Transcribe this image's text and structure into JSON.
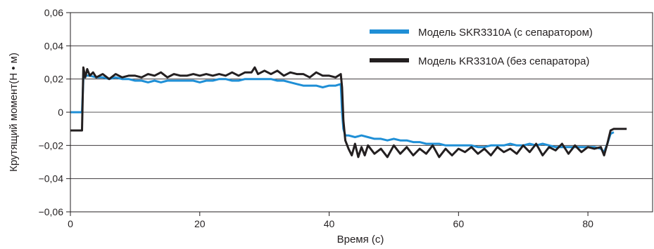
{
  "chart_data": {
    "type": "line",
    "xlabel": "Время (с)",
    "ylabel": "Крутящий момент(Н • м)",
    "xlim": [
      0,
      90
    ],
    "ylim": [
      -0.06,
      0.06
    ],
    "x_ticks": [
      "0",
      "20",
      "40",
      "60",
      "80"
    ],
    "x_tick_values": [
      0,
      20,
      40,
      60,
      80
    ],
    "y_ticks": [
      "0,06",
      "0,04",
      "0,02",
      "0",
      "−0,02",
      "−0,04",
      "−0,06"
    ],
    "y_tick_values": [
      0.06,
      0.04,
      0.02,
      0,
      -0.02,
      -0.04,
      -0.06
    ],
    "grid": "horizontal",
    "legend_position": "top-right",
    "series": [
      {
        "name": "Модель SKR3310A (с сепаратором)",
        "color": "#1f8fd6",
        "x": [
          0,
          1.8,
          2.0,
          2.2,
          2.6,
          3,
          4,
          5,
          6,
          7,
          8,
          9,
          10,
          11,
          12,
          13,
          14,
          15,
          16,
          17,
          18,
          19,
          20,
          21,
          22,
          23,
          24,
          25,
          26,
          27,
          28,
          29,
          30,
          31,
          32,
          33,
          34,
          35,
          36,
          37,
          38,
          39,
          40,
          41,
          41.8,
          42.0,
          42.2,
          42.5,
          43,
          44,
          45,
          46,
          47,
          48,
          49,
          50,
          51,
          52,
          53,
          54,
          55,
          56,
          57,
          58,
          59,
          60,
          61,
          62,
          63,
          64,
          65,
          66,
          67,
          68,
          69,
          70,
          71,
          72,
          73,
          74,
          75,
          76,
          77,
          78,
          79,
          80,
          81,
          82,
          82.5,
          83,
          83.5,
          84
        ],
        "values": [
          0.0,
          0.0,
          0.02,
          0.023,
          0.022,
          0.022,
          0.021,
          0.021,
          0.02,
          0.021,
          0.02,
          0.02,
          0.019,
          0.019,
          0.018,
          0.019,
          0.018,
          0.019,
          0.019,
          0.019,
          0.019,
          0.019,
          0.018,
          0.019,
          0.019,
          0.02,
          0.02,
          0.019,
          0.019,
          0.02,
          0.02,
          0.02,
          0.02,
          0.02,
          0.019,
          0.019,
          0.018,
          0.017,
          0.016,
          0.016,
          0.016,
          0.015,
          0.016,
          0.016,
          0.017,
          0.0,
          -0.01,
          -0.014,
          -0.014,
          -0.015,
          -0.014,
          -0.015,
          -0.016,
          -0.016,
          -0.017,
          -0.016,
          -0.017,
          -0.017,
          -0.018,
          -0.018,
          -0.019,
          -0.019,
          -0.019,
          -0.02,
          -0.02,
          -0.02,
          -0.02,
          -0.02,
          -0.021,
          -0.021,
          -0.02,
          -0.02,
          -0.02,
          -0.019,
          -0.02,
          -0.02,
          -0.019,
          -0.02,
          -0.019,
          -0.02,
          -0.021,
          -0.021,
          -0.021,
          -0.021,
          -0.021,
          -0.021,
          -0.021,
          -0.022,
          -0.024,
          -0.019,
          -0.013,
          -0.012
        ]
      },
      {
        "name": "Модель KR3310A (без сепаратора)",
        "color": "#231f20",
        "x": [
          0,
          1.5,
          1.8,
          2.0,
          2.3,
          2.6,
          3,
          3.5,
          4,
          5,
          6,
          7,
          8,
          9,
          10,
          11,
          12,
          13,
          14,
          15,
          16,
          17,
          18,
          19,
          20,
          21,
          22,
          23,
          24,
          25,
          26,
          27,
          28,
          28.5,
          29,
          30,
          31,
          32,
          33,
          34,
          35,
          36,
          37,
          38,
          39,
          40,
          41,
          41.8,
          42.0,
          42.2,
          42.5,
          43,
          43.5,
          44,
          44.5,
          45,
          45.5,
          46,
          47,
          48,
          49,
          50,
          51,
          52,
          53,
          54,
          55,
          56,
          57,
          58,
          59,
          60,
          61,
          62,
          63,
          64,
          65,
          66,
          67,
          68,
          69,
          70,
          71,
          72,
          73,
          74,
          75,
          76,
          77,
          78,
          79,
          80,
          81,
          82,
          82.5,
          83,
          83.5,
          84,
          85,
          86
        ],
        "values": [
          -0.011,
          -0.011,
          -0.011,
          0.027,
          0.021,
          0.026,
          0.022,
          0.024,
          0.021,
          0.023,
          0.02,
          0.023,
          0.021,
          0.022,
          0.022,
          0.021,
          0.023,
          0.022,
          0.024,
          0.021,
          0.023,
          0.022,
          0.022,
          0.023,
          0.022,
          0.023,
          0.022,
          0.023,
          0.022,
          0.024,
          0.022,
          0.024,
          0.024,
          0.027,
          0.023,
          0.025,
          0.023,
          0.025,
          0.022,
          0.024,
          0.023,
          0.023,
          0.021,
          0.024,
          0.022,
          0.022,
          0.021,
          0.023,
          0.015,
          -0.005,
          -0.017,
          -0.022,
          -0.026,
          -0.019,
          -0.027,
          -0.021,
          -0.026,
          -0.02,
          -0.025,
          -0.022,
          -0.027,
          -0.02,
          -0.025,
          -0.021,
          -0.026,
          -0.022,
          -0.025,
          -0.02,
          -0.027,
          -0.022,
          -0.026,
          -0.022,
          -0.024,
          -0.021,
          -0.025,
          -0.022,
          -0.026,
          -0.021,
          -0.024,
          -0.022,
          -0.025,
          -0.02,
          -0.024,
          -0.019,
          -0.026,
          -0.021,
          -0.023,
          -0.019,
          -0.025,
          -0.02,
          -0.024,
          -0.021,
          -0.022,
          -0.021,
          -0.026,
          -0.019,
          -0.011,
          -0.01,
          -0.01,
          -0.01
        ]
      }
    ]
  }
}
